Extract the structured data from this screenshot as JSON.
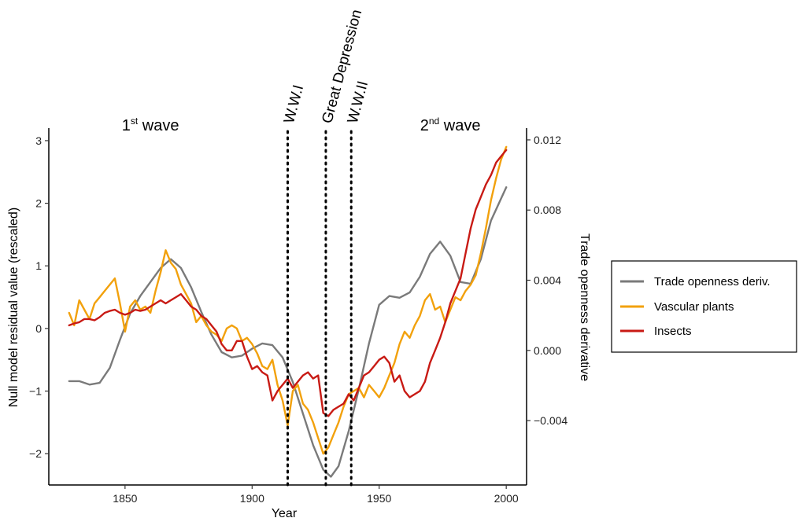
{
  "chart_data": {
    "type": "line",
    "xlabel": "Year",
    "ylabel": "Null model residual value (rescaled)",
    "y2label": "Trade openness derivative",
    "xlim": [
      1820,
      2008
    ],
    "ylim": [
      -2.5,
      3.2
    ],
    "y2lim": [
      -0.00767,
      0.01267
    ],
    "x_ticks": [
      1850,
      1900,
      1950,
      2000
    ],
    "y_ticks": [
      -2,
      -1,
      0,
      1,
      2,
      3
    ],
    "y_tick_labels": [
      "−2",
      "−1",
      "0",
      "1",
      "2",
      "3"
    ],
    "y2_ticks": [
      -0.004,
      0.0,
      0.004,
      0.008,
      0.012
    ],
    "y2_tick_labels": [
      "−0.004",
      "0.000",
      "0.004",
      "0.008",
      "0.012"
    ],
    "grid": false,
    "legend_position": "right",
    "events": [
      {
        "label": "W.W.I",
        "year": 1914
      },
      {
        "label": "Great Depression",
        "year": 1929
      },
      {
        "label": "W.W.II",
        "year": 1939
      }
    ],
    "waves": [
      {
        "ordinal": "1",
        "suffix": "st",
        "word": "wave",
        "anchor_year": 1860
      },
      {
        "ordinal": "2",
        "suffix": "nd",
        "word": "wave",
        "anchor_year": 1978
      }
    ],
    "series": [
      {
        "name": "Trade openness deriv.",
        "color": "#7a7a7a",
        "axis": "right",
        "x": [
          1828,
          1832,
          1836,
          1840,
          1844,
          1848,
          1852,
          1856,
          1860,
          1864,
          1868,
          1872,
          1876,
          1880,
          1884,
          1888,
          1892,
          1896,
          1900,
          1904,
          1908,
          1912,
          1916,
          1920,
          1924,
          1928,
          1931,
          1934,
          1938,
          1942,
          1946,
          1950,
          1954,
          1958,
          1962,
          1966,
          1970,
          1974,
          1978,
          1982,
          1986,
          1990,
          1994,
          2000
        ],
        "y": [
          -0.00175,
          -0.00175,
          -0.00195,
          -0.00185,
          -0.001,
          0.0006,
          0.0021,
          0.0031,
          0.0039,
          0.0047,
          0.0052,
          0.0047,
          0.0036,
          0.0022,
          0.0009,
          -0.0001,
          -0.0004,
          -0.0003,
          0.0001,
          0.0004,
          0.0003,
          -0.0004,
          -0.0018,
          -0.0036,
          -0.0054,
          -0.0068,
          -0.0072,
          -0.0066,
          -0.0046,
          -0.0022,
          0.0004,
          0.0026,
          0.0031,
          0.003,
          0.0033,
          0.0042,
          0.0055,
          0.0062,
          0.0054,
          0.0039,
          0.0038,
          0.0052,
          0.0074,
          0.0093
        ]
      },
      {
        "name": "Vascular plants",
        "color": "#f2a10c",
        "axis": "left",
        "x": [
          1828,
          1830,
          1832,
          1834,
          1836,
          1838,
          1840,
          1842,
          1844,
          1846,
          1848,
          1850,
          1852,
          1854,
          1856,
          1858,
          1860,
          1862,
          1864,
          1866,
          1868,
          1870,
          1872,
          1874,
          1876,
          1878,
          1880,
          1882,
          1884,
          1886,
          1888,
          1890,
          1892,
          1894,
          1896,
          1898,
          1900,
          1902,
          1904,
          1906,
          1908,
          1910,
          1912,
          1914,
          1916,
          1918,
          1920,
          1922,
          1924,
          1926,
          1928,
          1930,
          1932,
          1934,
          1936,
          1938,
          1940,
          1942,
          1944,
          1946,
          1948,
          1950,
          1952,
          1954,
          1956,
          1958,
          1960,
          1962,
          1964,
          1966,
          1968,
          1970,
          1972,
          1974,
          1976,
          1978,
          1980,
          1982,
          1984,
          1986,
          1988,
          1990,
          1992,
          1994,
          1996,
          1998,
          2000
        ],
        "y": [
          0.25,
          0.05,
          0.45,
          0.3,
          0.15,
          0.4,
          0.5,
          0.6,
          0.7,
          0.8,
          0.4,
          -0.05,
          0.35,
          0.45,
          0.3,
          0.35,
          0.25,
          0.6,
          0.9,
          1.25,
          1.05,
          0.95,
          0.7,
          0.55,
          0.4,
          0.1,
          0.2,
          0.05,
          -0.05,
          -0.1,
          -0.2,
          0.0,
          0.05,
          0.0,
          -0.2,
          -0.15,
          -0.25,
          -0.4,
          -0.6,
          -0.65,
          -0.5,
          -0.9,
          -1.15,
          -1.55,
          -1.0,
          -0.9,
          -1.2,
          -1.3,
          -1.5,
          -1.75,
          -2.0,
          -1.9,
          -1.7,
          -1.5,
          -1.25,
          -1.05,
          -1.0,
          -0.95,
          -1.1,
          -0.9,
          -1.0,
          -1.1,
          -0.95,
          -0.75,
          -0.55,
          -0.25,
          -0.05,
          -0.15,
          0.05,
          0.2,
          0.45,
          0.55,
          0.3,
          0.35,
          0.1,
          0.3,
          0.5,
          0.45,
          0.6,
          0.7,
          0.85,
          1.2,
          1.6,
          2.05,
          2.4,
          2.7,
          2.9
        ]
      },
      {
        "name": "Insects",
        "color": "#c81a14",
        "axis": "left",
        "x": [
          1828,
          1830,
          1832,
          1834,
          1836,
          1838,
          1840,
          1842,
          1844,
          1846,
          1848,
          1850,
          1852,
          1854,
          1856,
          1858,
          1860,
          1862,
          1864,
          1866,
          1868,
          1870,
          1872,
          1874,
          1876,
          1878,
          1880,
          1882,
          1884,
          1886,
          1888,
          1890,
          1892,
          1894,
          1896,
          1898,
          1900,
          1902,
          1904,
          1906,
          1908,
          1910,
          1912,
          1914,
          1916,
          1918,
          1920,
          1922,
          1924,
          1926,
          1928,
          1930,
          1932,
          1934,
          1936,
          1938,
          1940,
          1942,
          1944,
          1946,
          1948,
          1950,
          1952,
          1954,
          1956,
          1958,
          1960,
          1962,
          1964,
          1966,
          1968,
          1970,
          1972,
          1974,
          1976,
          1978,
          1980,
          1982,
          1984,
          1986,
          1988,
          1990,
          1992,
          1994,
          1996,
          1998,
          2000
        ],
        "y": [
          0.05,
          0.08,
          0.1,
          0.15,
          0.15,
          0.13,
          0.18,
          0.25,
          0.28,
          0.3,
          0.25,
          0.22,
          0.25,
          0.3,
          0.28,
          0.3,
          0.35,
          0.4,
          0.45,
          0.4,
          0.45,
          0.5,
          0.55,
          0.45,
          0.35,
          0.3,
          0.2,
          0.15,
          0.05,
          -0.05,
          -0.25,
          -0.35,
          -0.35,
          -0.2,
          -0.2,
          -0.45,
          -0.65,
          -0.6,
          -0.7,
          -0.75,
          -1.15,
          -1.0,
          -0.9,
          -0.8,
          -0.95,
          -0.85,
          -0.75,
          -0.7,
          -0.8,
          -0.75,
          -1.35,
          -1.4,
          -1.3,
          -1.25,
          -1.2,
          -1.05,
          -1.15,
          -0.95,
          -0.75,
          -0.7,
          -0.6,
          -0.5,
          -0.45,
          -0.55,
          -0.85,
          -0.75,
          -1.0,
          -1.1,
          -1.05,
          -1.0,
          -0.85,
          -0.55,
          -0.35,
          -0.15,
          0.1,
          0.4,
          0.6,
          0.8,
          1.2,
          1.6,
          1.9,
          2.1,
          2.3,
          2.45,
          2.65,
          2.75,
          2.85
        ]
      }
    ]
  }
}
